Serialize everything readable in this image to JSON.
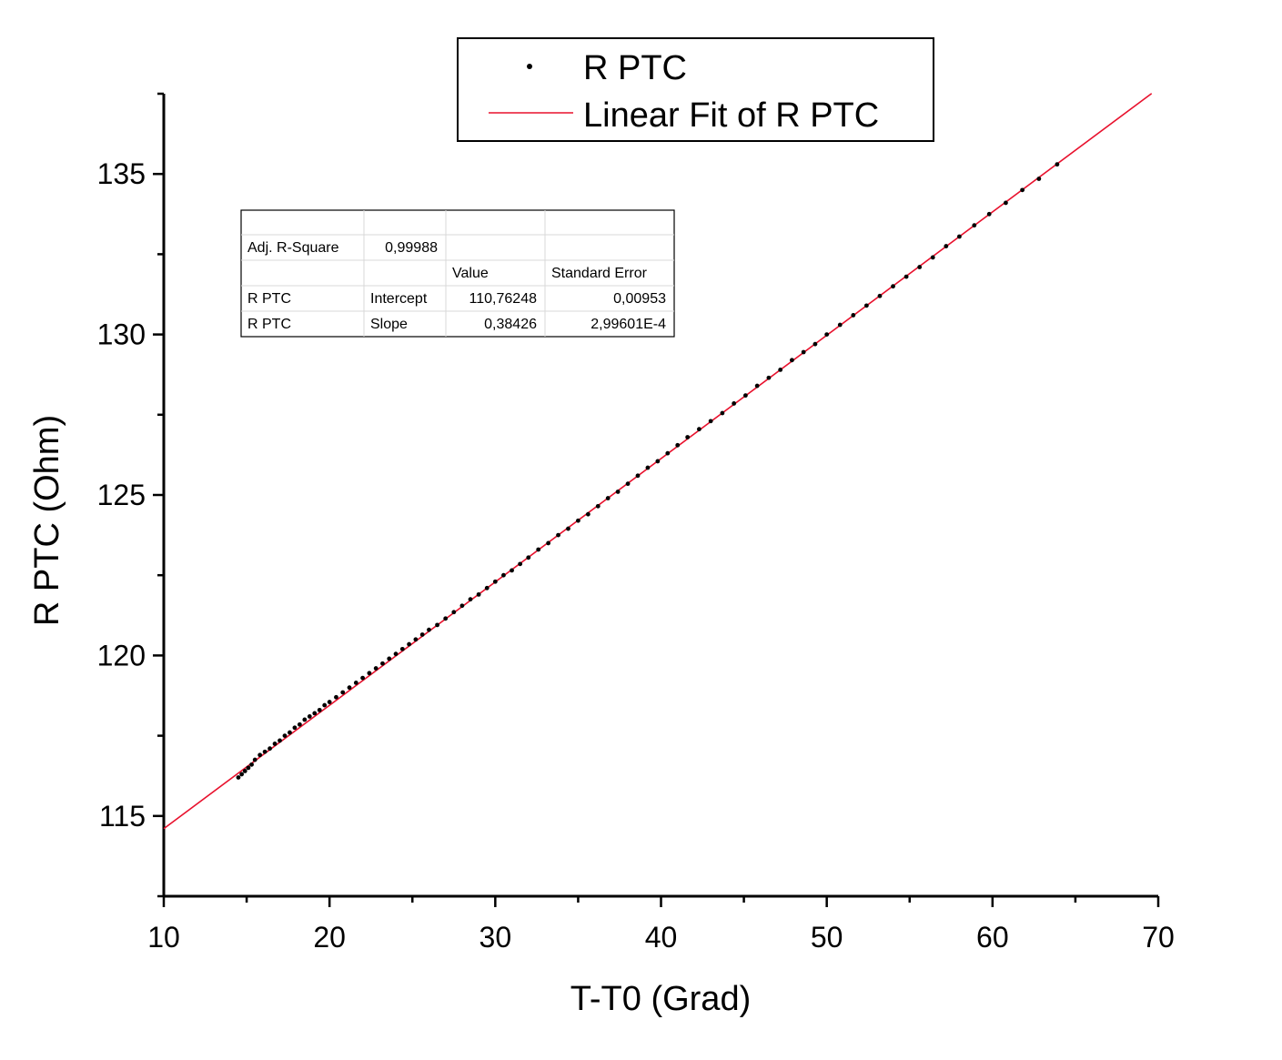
{
  "chart_data": {
    "type": "scatter",
    "xlabel": "T-T0 (Grad)",
    "ylabel": "R PTC (Ohm)",
    "xlim": [
      10,
      70
    ],
    "ylim": [
      112.5,
      137.5
    ],
    "x_major_ticks": [
      10,
      20,
      30,
      40,
      50,
      60,
      70
    ],
    "x_minor_ticks": [
      15,
      25,
      35,
      45,
      55,
      65
    ],
    "y_major_ticks": [
      115,
      120,
      125,
      130,
      135
    ],
    "y_minor_ticks": [
      112.5,
      117.5,
      122.5,
      127.5,
      132.5,
      137.5
    ],
    "x_tick_labels": [
      "10",
      "20",
      "30",
      "40",
      "50",
      "60",
      "70"
    ],
    "y_tick_labels": [
      "115",
      "120",
      "125",
      "130",
      "135"
    ],
    "grid": false,
    "legend_placement": "top-center",
    "legend": [
      {
        "label": "R PTC",
        "kind": "marker",
        "color": "#000000"
      },
      {
        "label": "Linear Fit of R PTC",
        "kind": "line",
        "color": "#e8112d"
      }
    ],
    "series": [
      {
        "name": "R PTC",
        "color": "#000000",
        "x": [
          14.5,
          14.7,
          14.9,
          15.1,
          15.3,
          15.5,
          15.8,
          16.1,
          16.4,
          16.7,
          17.0,
          17.3,
          17.6,
          17.9,
          18.2,
          18.5,
          18.8,
          19.1,
          19.4,
          19.7,
          20.0,
          20.4,
          20.8,
          21.2,
          21.6,
          22.0,
          22.4,
          22.8,
          23.2,
          23.6,
          24.0,
          24.4,
          24.8,
          25.2,
          25.6,
          26.0,
          26.5,
          27.0,
          27.5,
          28.0,
          28.5,
          29.0,
          29.5,
          30.0,
          30.5,
          31.0,
          31.5,
          32.0,
          32.6,
          33.2,
          33.8,
          34.4,
          35.0,
          35.6,
          36.2,
          36.8,
          37.4,
          38.0,
          38.6,
          39.2,
          39.8,
          40.4,
          41.0,
          41.6,
          42.3,
          43.0,
          43.7,
          44.4,
          45.1,
          45.8,
          46.5,
          47.2,
          47.9,
          48.6,
          49.3,
          50.0,
          50.8,
          51.6,
          52.4,
          53.2,
          54.0,
          54.8,
          55.6,
          56.4,
          57.2,
          58.0,
          58.9,
          59.8,
          60.8,
          61.8,
          62.8,
          63.9
        ],
        "y": [
          116.2,
          116.3,
          116.4,
          116.5,
          116.6,
          116.75,
          116.9,
          117.0,
          117.1,
          117.25,
          117.35,
          117.5,
          117.6,
          117.75,
          117.85,
          118.0,
          118.1,
          118.2,
          118.3,
          118.45,
          118.55,
          118.7,
          118.85,
          119.0,
          119.15,
          119.3,
          119.45,
          119.6,
          119.75,
          119.9,
          120.05,
          120.2,
          120.35,
          120.5,
          120.65,
          120.8,
          120.95,
          121.15,
          121.35,
          121.55,
          121.75,
          121.9,
          122.1,
          122.3,
          122.5,
          122.65,
          122.85,
          123.05,
          123.3,
          123.5,
          123.75,
          123.95,
          124.2,
          124.4,
          124.65,
          124.9,
          125.1,
          125.35,
          125.6,
          125.85,
          126.05,
          126.3,
          126.55,
          126.8,
          127.05,
          127.3,
          127.55,
          127.85,
          128.1,
          128.4,
          128.65,
          128.9,
          129.2,
          129.45,
          129.7,
          130.0,
          130.3,
          130.6,
          130.9,
          131.2,
          131.5,
          131.8,
          132.1,
          132.4,
          132.75,
          133.05,
          133.4,
          133.75,
          134.1,
          134.5,
          134.85,
          135.3
        ]
      },
      {
        "name": "Linear Fit of R PTC",
        "color": "#e8112d",
        "fit": {
          "intercept": 110.76248,
          "slope": 0.38426
        },
        "x_range": [
          10,
          69.6
        ]
      }
    ],
    "stats_table": {
      "rows": [
        [
          "",
          "",
          "",
          ""
        ],
        [
          "Adj. R-Square",
          "0,99988",
          "",
          ""
        ],
        [
          "",
          "",
          "Value",
          "Standard Error"
        ],
        [
          "R PTC",
          "Intercept",
          "110,76248",
          "0,00953"
        ],
        [
          "R PTC",
          "Slope",
          "0,38426",
          "2,99601E-4"
        ]
      ]
    }
  }
}
